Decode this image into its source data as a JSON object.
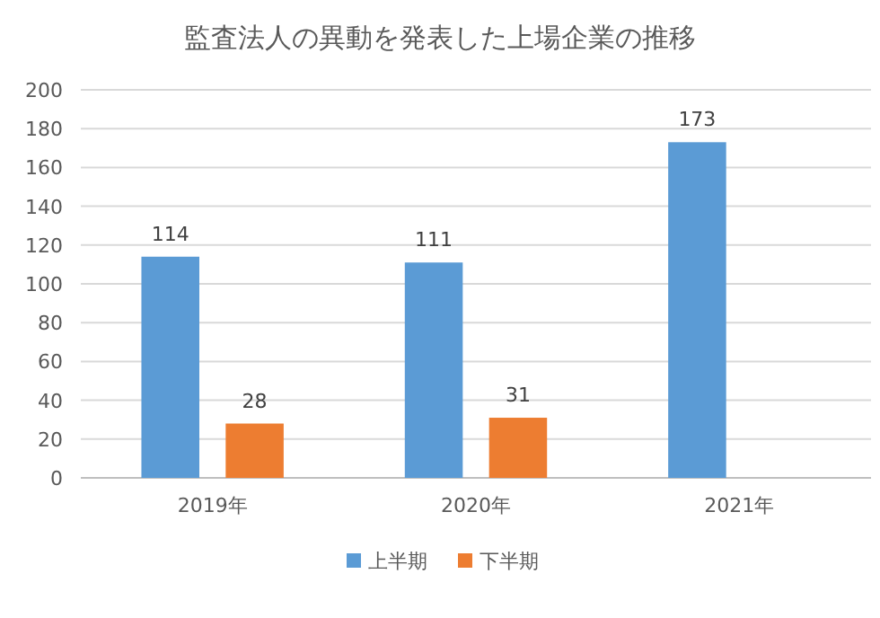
{
  "chart_data": {
    "type": "bar",
    "title": "監査法人の異動を発表した上場企業の推移",
    "categories": [
      "2019年",
      "2020年",
      "2021年"
    ],
    "series": [
      {
        "name": "上半期",
        "color": "#5b9bd5",
        "values": [
          114,
          111,
          173
        ]
      },
      {
        "name": "下半期",
        "color": "#ed7d31",
        "values": [
          28,
          31,
          null
        ]
      }
    ],
    "ylim": [
      0,
      200
    ],
    "yticks": [
      0,
      20,
      40,
      60,
      80,
      100,
      120,
      140,
      160,
      180,
      200
    ],
    "grid": "y",
    "legend": "bottom",
    "data_labels": true
  }
}
